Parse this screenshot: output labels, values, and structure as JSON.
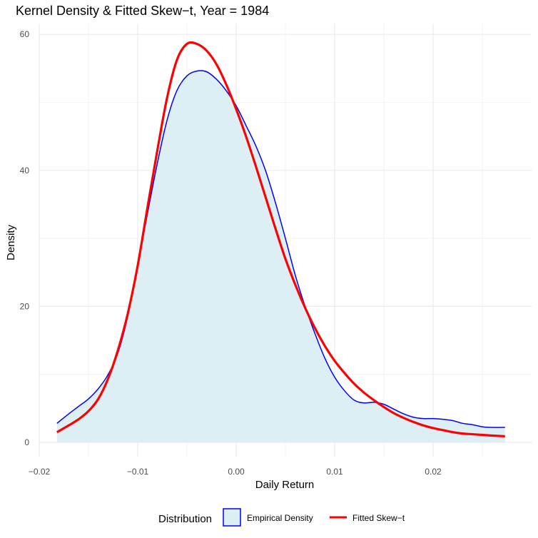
{
  "chart_data": {
    "type": "area",
    "title": "Kernel Density & Fitted Skew−t, Year = 1984",
    "xlabel": "Daily Return",
    "ylabel": "Density",
    "xlim": [
      -0.0185,
      0.0275
    ],
    "ylim": [
      0,
      60
    ],
    "x_ticks": [
      -0.02,
      -0.01,
      0.0,
      0.01,
      0.02
    ],
    "x_tick_labels": [
      "−0.02",
      "−0.01",
      "0.00",
      "0.01",
      "0.02"
    ],
    "y_ticks": [
      0,
      20,
      40,
      60
    ],
    "y_tick_labels": [
      "0",
      "20",
      "40",
      "60"
    ],
    "grid": true,
    "legend_position": "bottom",
    "legend_title": "Distribution",
    "series": [
      {
        "name": "Empirical Density",
        "style": "area",
        "fill": "#deeef5",
        "stroke": "#0000ff",
        "x": [
          -0.0182,
          -0.017,
          -0.016,
          -0.015,
          -0.014,
          -0.013,
          -0.012,
          -0.011,
          -0.01,
          -0.009,
          -0.008,
          -0.007,
          -0.006,
          -0.005,
          -0.004,
          -0.003,
          -0.002,
          -0.001,
          0.0,
          0.001,
          0.002,
          0.003,
          0.004,
          0.005,
          0.006,
          0.007,
          0.008,
          0.009,
          0.01,
          0.011,
          0.012,
          0.013,
          0.014,
          0.015,
          0.016,
          0.017,
          0.018,
          0.019,
          0.02,
          0.021,
          0.022,
          0.023,
          0.024,
          0.025,
          0.026,
          0.0273
        ],
        "y": [
          2.8,
          4.2,
          5.3,
          6.4,
          7.9,
          10.0,
          13.2,
          18.6,
          26.0,
          33.7,
          41.1,
          47.5,
          51.8,
          53.9,
          54.6,
          54.5,
          53.4,
          51.7,
          49.5,
          46.6,
          43.6,
          39.9,
          35.2,
          30.0,
          24.6,
          20.0,
          16.0,
          12.4,
          9.6,
          7.6,
          6.2,
          5.8,
          5.9,
          5.6,
          4.9,
          4.2,
          3.7,
          3.5,
          3.5,
          3.4,
          3.2,
          2.8,
          2.6,
          2.3,
          2.2,
          2.2
        ]
      },
      {
        "name": "Fitted Skew−t",
        "style": "line",
        "stroke": "#ff0000",
        "x": [
          -0.0182,
          -0.017,
          -0.016,
          -0.015,
          -0.014,
          -0.013,
          -0.012,
          -0.011,
          -0.01,
          -0.009,
          -0.008,
          -0.007,
          -0.006,
          -0.005,
          -0.004,
          -0.003,
          -0.002,
          -0.001,
          0.0,
          0.001,
          0.002,
          0.003,
          0.004,
          0.005,
          0.006,
          0.007,
          0.008,
          0.009,
          0.01,
          0.011,
          0.012,
          0.013,
          0.014,
          0.015,
          0.016,
          0.017,
          0.018,
          0.019,
          0.02,
          0.021,
          0.022,
          0.023,
          0.024,
          0.025,
          0.026,
          0.0273
        ],
        "y": [
          1.5,
          2.5,
          3.4,
          4.6,
          6.4,
          9.4,
          13.6,
          19.0,
          26.0,
          34.6,
          43.0,
          50.8,
          56.3,
          58.6,
          58.6,
          57.6,
          55.6,
          52.6,
          49.0,
          45.0,
          40.6,
          36.0,
          31.4,
          27.0,
          23.2,
          19.8,
          16.8,
          14.2,
          12.0,
          10.2,
          8.6,
          7.3,
          6.2,
          5.2,
          4.3,
          3.6,
          3.0,
          2.5,
          2.1,
          1.8,
          1.5,
          1.3,
          1.2,
          1.1,
          1.0,
          0.9
        ]
      }
    ]
  }
}
